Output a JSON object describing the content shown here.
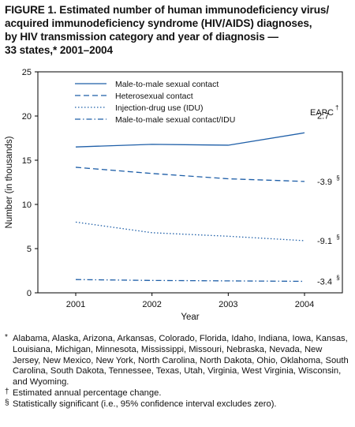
{
  "title": "FIGURE 1. Estimated number of human immunodeficiency virus/ acquired immunodeficiency syndrome (HIV/AIDS) diagnoses, by HIV transmission category and year of diagnosis — 33 states,* 2001–2004",
  "title_line1": "FIGURE 1. Estimated number of human immunodeficiency virus/",
  "title_line2": "acquired immunodeficiency syndrome (HIV/AIDS) diagnoses,",
  "title_line3": "by HIV transmission category and year of diagnosis —",
  "title_line4": "33 states,* 2001–2004",
  "footnotes": {
    "states_mark": "*",
    "states": "Alabama, Alaska, Arizona, Arkansas, Colorado, Florida, Idaho, Indiana, Iowa, Kansas, Louisiana, Michigan, Minnesota, Mississippi, Missouri, Nebraska, Nevada, New Jersey, New Mexico, New York, North Carolina, North Dakota, Ohio, Oklahoma, South Carolina, South Dakota, Tennessee, Texas, Utah, Virginia, West Virginia, Wisconsin, and Wyoming.",
    "eapc_mark": "†",
    "eapc": "Estimated annual percentage change.",
    "sig_mark": "§",
    "sig": "Statistically significant (i.e., 95% confidence interval excludes zero)."
  },
  "chart_data": {
    "type": "line",
    "xlabel": "Year",
    "ylabel": "Number (in thousands)",
    "x": [
      "2001",
      "2002",
      "2003",
      "2004"
    ],
    "ylim": [
      0,
      25
    ],
    "yticks": [
      0,
      5,
      10,
      15,
      20,
      25
    ],
    "grid": false,
    "legend_position": "top-left",
    "eapc_header": "EAPC",
    "eapc_header_mark": "†",
    "line_color": "#1f5fa8",
    "series": [
      {
        "name": "Male-to-male sexual contact",
        "dash": "solid",
        "values": [
          16.5,
          16.8,
          16.7,
          18.1
        ],
        "eapc": "2.7",
        "eapc_mark": ""
      },
      {
        "name": "Heterosexual contact",
        "dash": "dashed",
        "values": [
          14.2,
          13.5,
          12.9,
          12.6
        ],
        "eapc": "-3.9",
        "eapc_mark": "§"
      },
      {
        "name": "Injection-drug use (IDU)",
        "dash": "dotted",
        "values": [
          8.0,
          6.8,
          6.4,
          5.9
        ],
        "eapc": "-9.1",
        "eapc_mark": "§"
      },
      {
        "name": "Male-to-male sexual contact/IDU",
        "dash": "dashdot",
        "values": [
          1.5,
          1.4,
          1.35,
          1.3
        ],
        "eapc": "-3.4",
        "eapc_mark": "§"
      }
    ]
  }
}
